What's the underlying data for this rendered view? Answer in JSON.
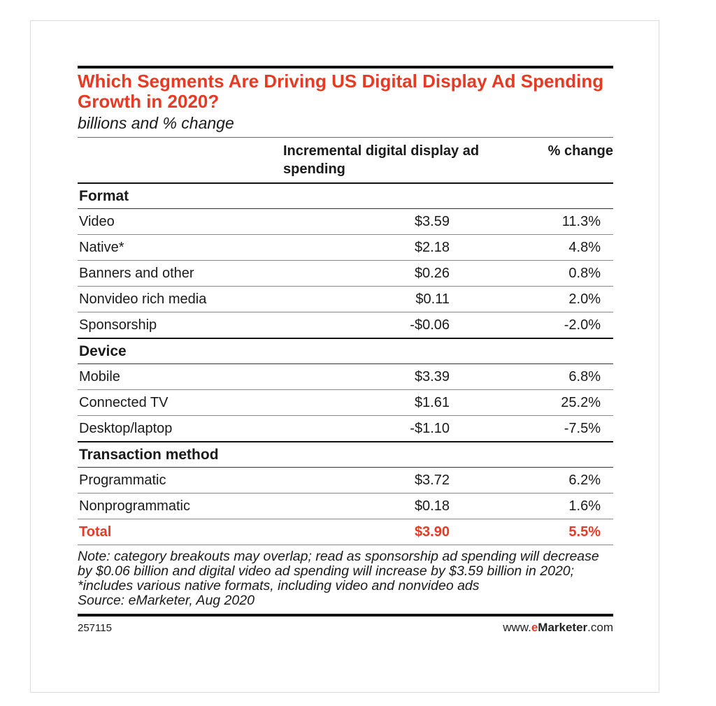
{
  "chart_data": {
    "type": "table",
    "title": "Which Segments Are Driving US Digital Display Ad Spending Growth in 2020?",
    "subtitle": "billions and % change",
    "columns": [
      "",
      "Incremental digital display ad spending",
      "% change"
    ],
    "groups": [
      {
        "name": "Format",
        "rows": [
          {
            "label": "Video",
            "value": "$3.59",
            "change": "11.3%"
          },
          {
            "label": "Native*",
            "value": "$2.18",
            "change": "4.8%"
          },
          {
            "label": "Banners and other",
            "value": "$0.26",
            "change": "0.8%"
          },
          {
            "label": "Nonvideo rich media",
            "value": "$0.11",
            "change": "2.0%"
          },
          {
            "label": "Sponsorship",
            "value": "-$0.06",
            "change": "-2.0%"
          }
        ]
      },
      {
        "name": "Device",
        "rows": [
          {
            "label": "Mobile",
            "value": "$3.39",
            "change": "6.8%"
          },
          {
            "label": "Connected TV",
            "value": "$1.61",
            "change": "25.2%"
          },
          {
            "label": "Desktop/laptop",
            "value": "-$1.10",
            "change": "-7.5%"
          }
        ]
      },
      {
        "name": "Transaction method",
        "rows": [
          {
            "label": "Programmatic",
            "value": "$3.72",
            "change": "6.2%"
          },
          {
            "label": "Nonprogrammatic",
            "value": "$0.18",
            "change": "1.6%"
          }
        ]
      }
    ],
    "total": {
      "label": "Total",
      "value": "$3.90",
      "change": "5.5%"
    },
    "note": "Note: category breakouts may overlap; read as sponsorship ad spending will decrease by $0.06 billion and digital video ad spending will increase by $3.59 billion in 2020; *includes various native formats, including video and nonvideo ads",
    "source": "Source: eMarketer, Aug 2020",
    "chart_id": "257115",
    "brand": {
      "prefix": "www.",
      "e": "e",
      "rest": "Marketer",
      "suffix": ".com"
    },
    "colors": {
      "accent": "#e53a24",
      "rule": "#111111"
    }
  }
}
